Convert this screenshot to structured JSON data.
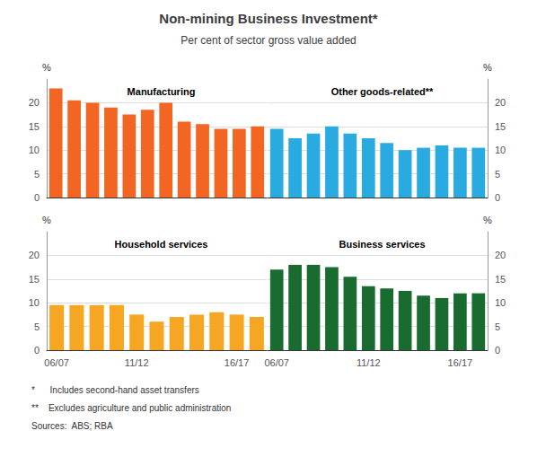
{
  "title": "Non-mining Business Investment*",
  "subtitle": "Per cent of sector gross value added",
  "annotations": [
    "*      Includes second-hand asset transfers",
    "**    Excludes agriculture and public administration",
    "Sources:  ABS; RBA"
  ],
  "chart_data": [
    {
      "type": "bar",
      "title": "Manufacturing",
      "ylabel": "%",
      "categories": [
        null,
        null,
        null,
        null,
        null,
        null,
        null,
        null,
        null,
        null,
        null,
        null
      ],
      "values": [
        23.0,
        20.5,
        20.0,
        19.0,
        17.5,
        18.5,
        20.0,
        16.0,
        15.5,
        14.5,
        14.5,
        15.0
      ],
      "color": "#F26522",
      "ylim": [
        0,
        25
      ],
      "yticks": [
        0,
        5,
        10,
        15,
        20
      ],
      "grid": true,
      "tick_labels": "y"
    },
    {
      "type": "bar",
      "title": "Other goods-related**",
      "ylabel": "%",
      "categories": [
        null,
        null,
        null,
        null,
        null,
        null,
        null,
        null,
        null,
        null,
        null,
        null
      ],
      "values": [
        14.5,
        12.5,
        13.5,
        15.0,
        13.5,
        12.5,
        11.5,
        10.0,
        10.5,
        11.0,
        10.5,
        10.5
      ],
      "color": "#29ABE2",
      "ylim": [
        0,
        25
      ],
      "yticks": [
        0,
        5,
        10,
        15,
        20
      ],
      "grid": true,
      "tick_labels": "y"
    },
    {
      "type": "bar",
      "title": "Household services",
      "ylabel": "%",
      "categories": [
        "06/07",
        null,
        null,
        null,
        "11/12",
        null,
        null,
        null,
        null,
        "16/17",
        null
      ],
      "values": [
        9.5,
        9.5,
        9.5,
        9.5,
        7.5,
        6.0,
        7.0,
        7.5,
        8.0,
        7.5,
        7.0
      ],
      "color": "#F5A623",
      "ylim": [
        0,
        25
      ],
      "yticks": [
        0,
        5,
        10,
        15,
        20
      ],
      "grid": true
    },
    {
      "type": "bar",
      "title": "Business services",
      "ylabel": "%",
      "categories": [
        "06/07",
        null,
        null,
        null,
        null,
        "11/12",
        null,
        null,
        null,
        null,
        "16/17",
        null
      ],
      "values": [
        17.0,
        18.0,
        18.0,
        17.5,
        15.5,
        13.5,
        13.0,
        12.5,
        11.5,
        11.0,
        12.0,
        12.0
      ],
      "color": "#1A6B30",
      "ylim": [
        0,
        25
      ],
      "yticks": [
        0,
        5,
        10,
        15,
        20
      ],
      "grid": true
    }
  ]
}
